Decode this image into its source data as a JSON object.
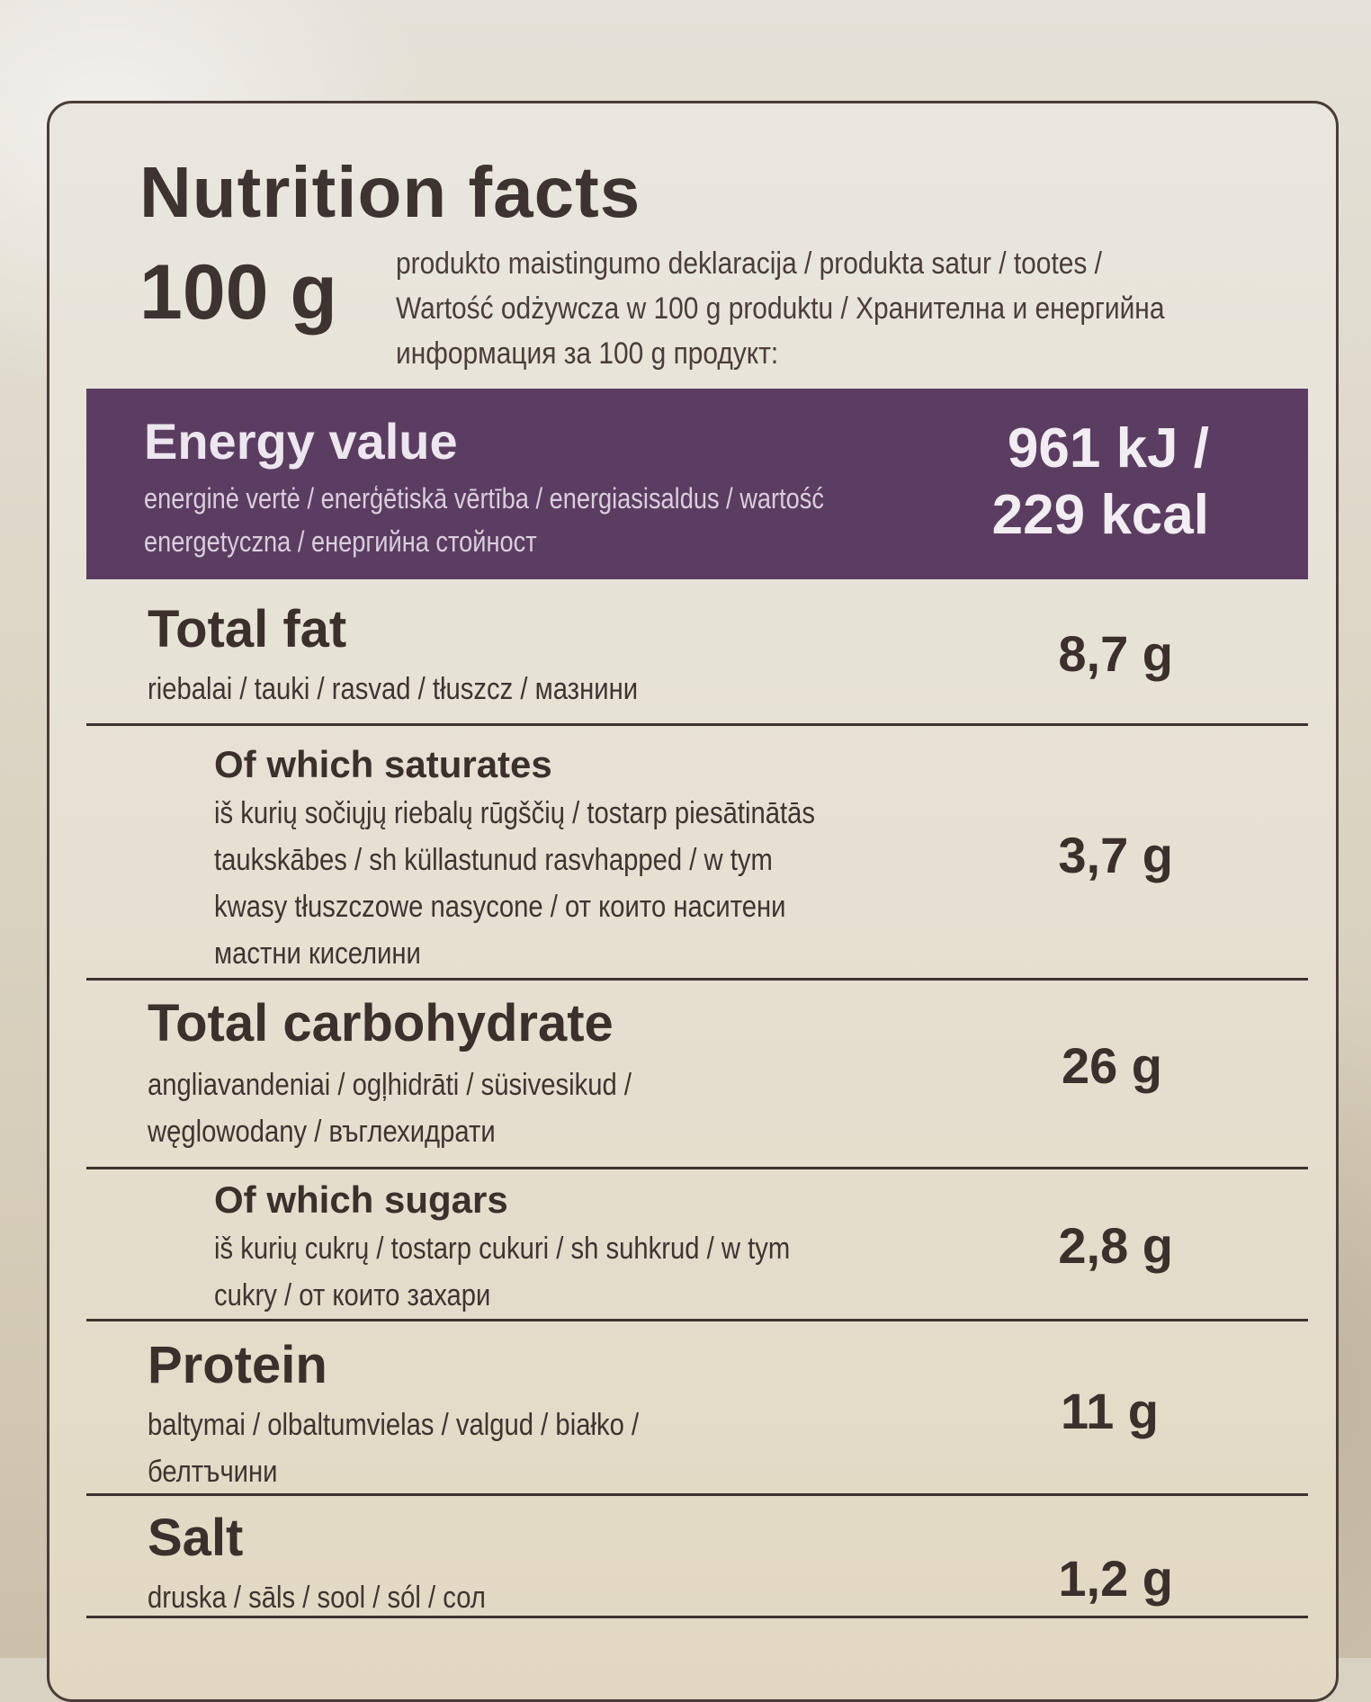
{
  "title": "Nutrition facts",
  "per_amount": "100 g",
  "per_description": "produkto maistingumo deklaracija / produkta satur / tootes / Wartość odżywcza w 100 g produktu / Хранителна и енергийна информация за 100 g продукт:",
  "energy": {
    "label": "Energy value",
    "translations": "energinė vertė / enerģētiskā vērtība / energiasisaldus / wartość energetyczna / енергийна стойност",
    "kj": "961 kJ /",
    "kcal": "229 kcal"
  },
  "nutrients": [
    {
      "label": "Total fat",
      "translations": "riebalai / tauki / rasvad / tłuszcz / мазнини",
      "value": "8,7 g"
    },
    {
      "label": "Of which saturates",
      "translations": "iš kurių sočiųjų riebalų rūgščių / tostarp piesātinātās taukskābes / sh küllastunud rasvhapped / w tym kwasy tłuszczowe nasycone / от които наситени мастни киселини",
      "value": "3,7 g"
    },
    {
      "label": "Total carbohydrate",
      "translations": "angliavandeniai / ogļhidrāti / süsivesikud / węglowodany / въглехидрати",
      "value": "26 g"
    },
    {
      "label": "Of which sugars",
      "translations": "iš kurių cukrų / tostarp cukuri / sh suhkrud / w tym cukry / от които захари",
      "value": "2,8 g"
    },
    {
      "label": "Protein",
      "translations": "baltymai / olbaltumvielas / valgud / białko / белтъчини",
      "value": "11 g"
    },
    {
      "label": "Salt",
      "translations": "druska / sāls / sool / sól / сол",
      "value": "1,2 g"
    }
  ],
  "colors": {
    "energy_band": "#5c3d62",
    "text": "#3b302c",
    "label_background": "#e6e0d2"
  }
}
